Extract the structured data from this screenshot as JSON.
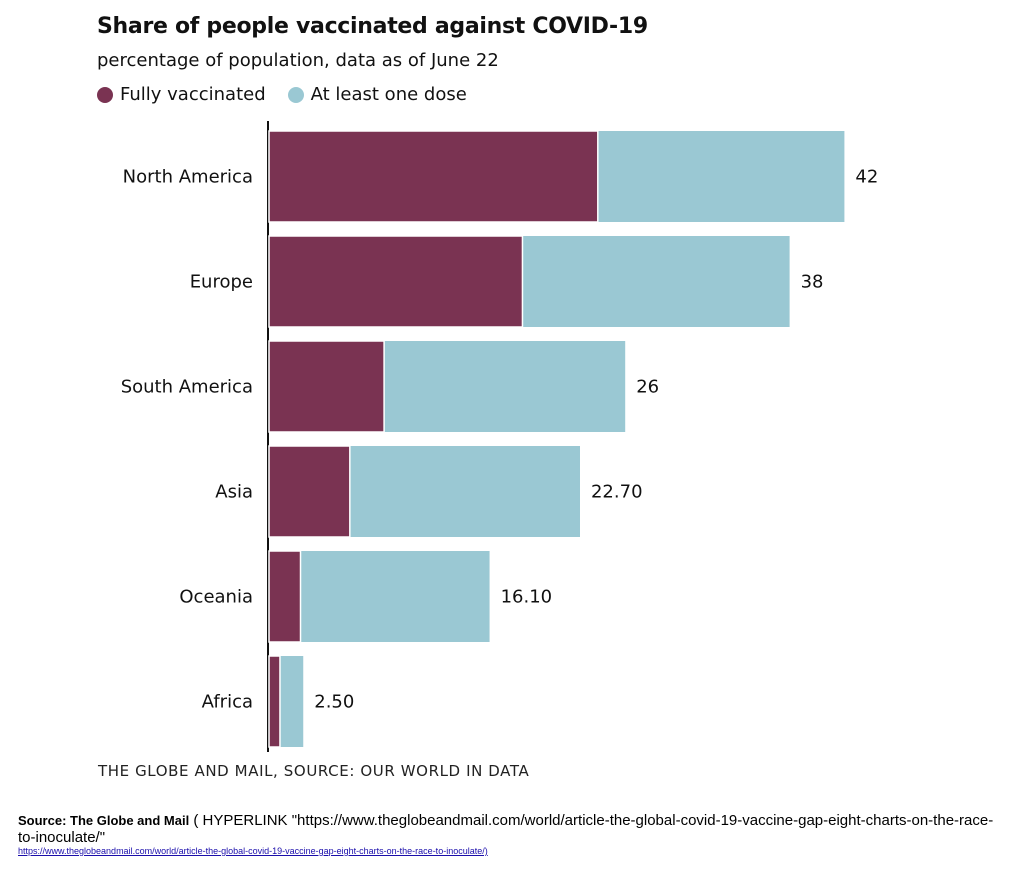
{
  "chart_data": {
    "type": "bar",
    "orientation": "horizontal",
    "title": "Share of people vaccinated against COVID-19",
    "subtitle": "percentage of population, data as of June 22",
    "categories": [
      "North America",
      "Europe",
      "South America",
      "Asia",
      "Oceania",
      "Africa"
    ],
    "series": [
      {
        "name": "Fully vaccinated",
        "color": "#7a3352",
        "values": [
          24.0,
          18.5,
          8.4,
          5.9,
          2.3,
          0.8
        ]
      },
      {
        "name": "At least one dose",
        "color": "#9ac8d3",
        "values": [
          42,
          38,
          26,
          22.7,
          16.1,
          2.5
        ]
      }
    ],
    "value_labels": [
      "42",
      "38",
      "26",
      "22.70",
      "16.10",
      "2.50"
    ],
    "xlim": [
      0,
      50
    ],
    "grid": false,
    "legend_position": "top-left",
    "credit": "THE GLOBE AND MAIL, SOURCE: OUR WORLD IN DATA"
  },
  "source": {
    "label": "Source: The Globe and Mail",
    "field_text": "( HYPERLINK \"https://www.theglobeandmail.com/world/article-the-global-covid-19-vaccine-gap-eight-charts-on-the-race-to-inoculate/\"",
    "link_text": "https://www.theglobeandmail.com/world/article-the-global-covid-19-vaccine-gap-eight-charts-on-the-race-to-inoculate/)"
  }
}
